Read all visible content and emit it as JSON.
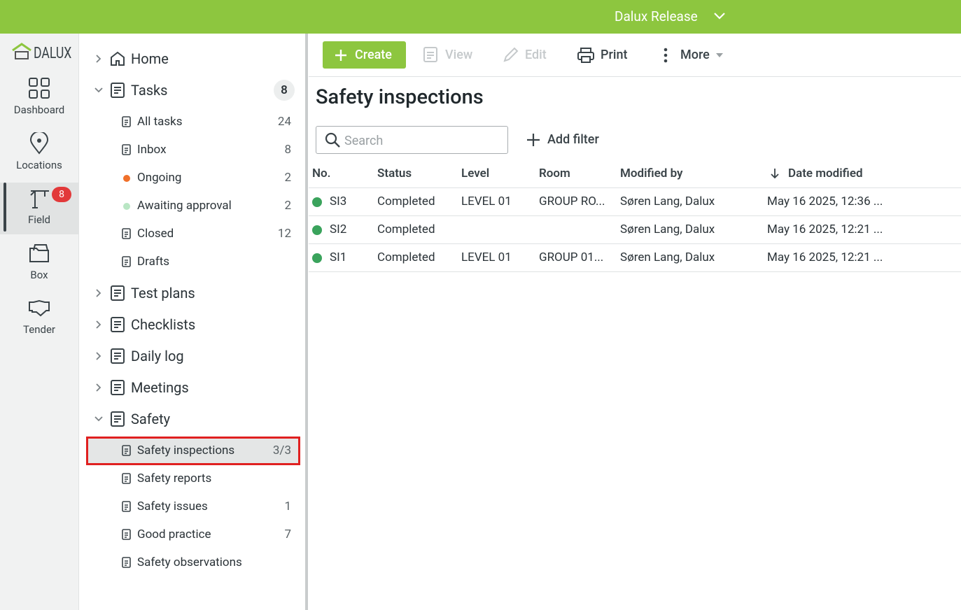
{
  "topbar": {
    "project": "Dalux Release"
  },
  "rail": {
    "logo": "DALUX",
    "items": [
      {
        "label": "Dashboard"
      },
      {
        "label": "Locations"
      },
      {
        "label": "Field",
        "badge": 8,
        "selected": true
      },
      {
        "label": "Box"
      },
      {
        "label": "Tender"
      }
    ]
  },
  "nav": [
    {
      "label": "Home"
    },
    {
      "label": "Tasks",
      "count": 8,
      "children": [
        {
          "label": "All tasks",
          "count": 24
        },
        {
          "label": "Inbox",
          "count": 8
        },
        {
          "label": "Ongoing",
          "count": 2,
          "dot": "#f0702a"
        },
        {
          "label": "Awaiting approval",
          "count": 2,
          "dot": "#b9e6c4"
        },
        {
          "label": "Closed",
          "count": 12
        },
        {
          "label": "Drafts"
        }
      ]
    },
    {
      "label": "Test plans"
    },
    {
      "label": "Checklists"
    },
    {
      "label": "Daily log"
    },
    {
      "label": "Meetings"
    },
    {
      "label": "Safety",
      "children": [
        {
          "label": "Safety inspections",
          "count": "3/3",
          "selected": true
        },
        {
          "label": "Safety reports"
        },
        {
          "label": "Safety issues",
          "count": 1
        },
        {
          "label": "Good practice",
          "count": 7
        },
        {
          "label": "Safety observations"
        }
      ]
    }
  ],
  "toolbar": {
    "create": "Create",
    "view": "View",
    "edit": "Edit",
    "print": "Print",
    "more": "More"
  },
  "main": {
    "title": "Safety inspections",
    "search": "Search",
    "add_filter": "Add filter",
    "table": {
      "columns": [
        "No.",
        "Status",
        "Level",
        "Room",
        "Modified by",
        "Date modified"
      ],
      "rows": [
        [
          "SI3",
          "Completed",
          "LEVEL 01",
          "GROUP RO...",
          "Søren Lang, Dalux",
          "May 16 2025, 12:36 ..."
        ],
        [
          "SI2",
          "Completed",
          null,
          null,
          "Søren Lang, Dalux",
          "May 16 2025, 12:21 ..."
        ],
        [
          "SI1",
          "Completed",
          "LEVEL 01",
          "GROUP 01...",
          "Søren Lang, Dalux",
          "May 16 2025, 12:21 ..."
        ]
      ]
    }
  }
}
